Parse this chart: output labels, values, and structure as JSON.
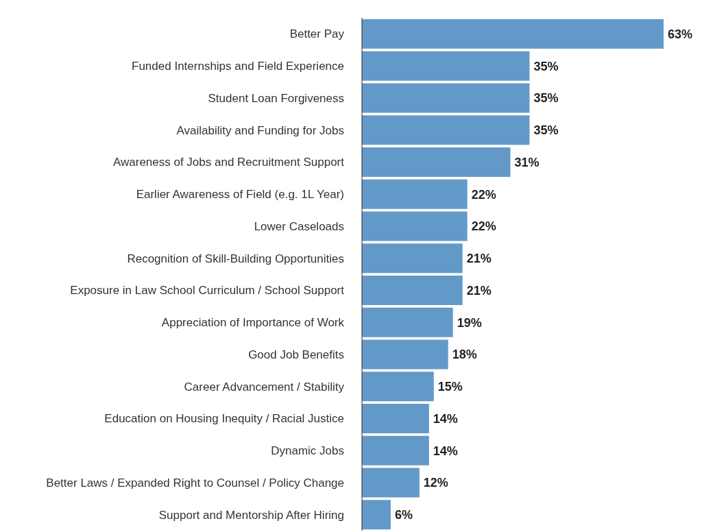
{
  "chart_data": {
    "type": "bar",
    "orientation": "horizontal",
    "categories": [
      "Better Pay",
      "Funded Internships and Field Experience",
      "Student Loan Forgiveness",
      "Availability and Funding for Jobs",
      "Awareness of Jobs and Recruitment Support",
      "Earlier Awareness of Field (e.g. 1L Year)",
      "Lower Caseloads",
      "Recognition of Skill-Building Opportunities",
      "Exposure in Law School Curriculum / School Support",
      "Appreciation of Importance of Work",
      "Good Job Benefits",
      "Career Advancement / Stability",
      "Education on Housing Inequity / Racial Justice",
      "Dynamic Jobs",
      "Better Laws / Expanded Right to Counsel / Policy Change",
      "Support and Mentorship After Hiring"
    ],
    "values": [
      63,
      35,
      35,
      35,
      31,
      22,
      22,
      21,
      21,
      19,
      18,
      15,
      14,
      14,
      12,
      6
    ],
    "value_labels": [
      "63%",
      "35%",
      "35%",
      "35%",
      "31%",
      "22%",
      "22%",
      "21%",
      "21%",
      "19%",
      "18%",
      "15%",
      "14%",
      "14%",
      "12%",
      "6%"
    ],
    "color": "#6399c8",
    "grid": false,
    "legend": false
  }
}
